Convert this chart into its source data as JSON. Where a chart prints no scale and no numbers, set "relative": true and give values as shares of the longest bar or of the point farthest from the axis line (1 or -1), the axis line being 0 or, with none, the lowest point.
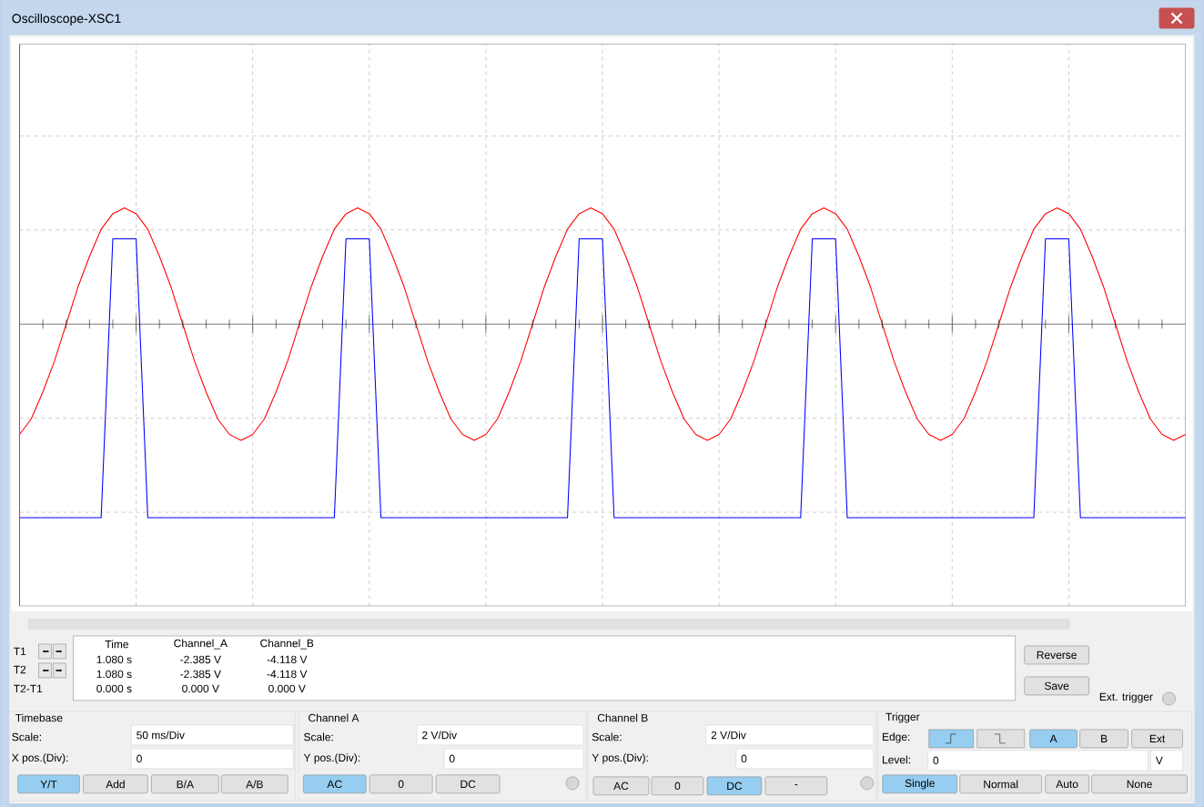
{
  "chart_data": {
    "type": "line",
    "title": "Oscilloscope-XSC1",
    "relative": true,
    "grid": true,
    "categories": [
      null,
      null,
      null,
      null,
      null,
      null,
      null,
      null,
      null,
      null,
      null,
      null,
      null,
      null,
      null,
      null,
      null,
      null,
      null,
      null,
      null,
      null,
      null,
      null,
      null,
      null,
      null,
      null,
      null,
      null,
      null,
      null,
      null,
      null,
      null,
      null,
      null,
      null,
      null,
      null,
      null,
      null,
      null,
      null,
      null,
      null,
      null,
      null,
      null,
      null,
      null,
      null,
      null,
      null,
      null,
      null,
      null,
      null,
      null,
      null,
      null,
      null,
      null,
      null,
      null,
      null,
      null,
      null,
      null,
      null,
      null,
      null,
      null,
      null,
      null,
      null,
      null,
      null,
      null,
      null,
      null,
      null,
      null,
      null,
      null,
      null,
      null,
      null,
      null,
      null,
      null,
      null,
      null,
      null,
      null,
      null,
      null,
      null,
      null,
      null,
      null
    ],
    "series": [
      {
        "color": "#ff0000",
        "values": [
          -0.57,
          -0.49,
          -0.35,
          -0.19,
          0,
          0.19,
          0.35,
          0.49,
          0.57,
          0.6,
          0.57,
          0.49,
          0.35,
          0.19,
          0,
          -0.19,
          -0.35,
          -0.49,
          -0.57,
          -0.6,
          -0.57,
          -0.49,
          -0.35,
          -0.19,
          0,
          0.19,
          0.35,
          0.49,
          0.57,
          0.6,
          0.57,
          0.49,
          0.35,
          0.19,
          0,
          -0.19,
          -0.35,
          -0.49,
          -0.57,
          -0.6,
          -0.57,
          -0.49,
          -0.35,
          -0.19,
          0,
          0.19,
          0.35,
          0.49,
          0.57,
          0.6,
          0.57,
          0.49,
          0.35,
          0.19,
          0,
          -0.19,
          -0.35,
          -0.49,
          -0.57,
          -0.6,
          -0.57,
          -0.49,
          -0.35,
          -0.19,
          0,
          0.19,
          0.35,
          0.49,
          0.57,
          0.6,
          0.57,
          0.49,
          0.35,
          0.19,
          0,
          -0.19,
          -0.35,
          -0.49,
          -0.57,
          -0.6,
          -0.57,
          -0.49,
          -0.35,
          -0.19,
          0,
          0.19,
          0.35,
          0.49,
          0.57,
          0.6,
          0.57,
          0.49,
          0.35,
          0.19,
          0,
          -0.19,
          -0.35,
          -0.49,
          -0.57,
          -0.6,
          -0.57
        ]
      },
      {
        "color": "#0000ff",
        "values": [
          -1,
          -1,
          -1,
          -1,
          -1,
          -1,
          -1,
          -1,
          0.44,
          0.44,
          0.44,
          -1,
          -1,
          -1,
          -1,
          -1,
          -1,
          -1,
          -1,
          -1,
          -1,
          -1,
          -1,
          -1,
          -1,
          -1,
          -1,
          -1,
          0.44,
          0.44,
          0.44,
          -1,
          -1,
          -1,
          -1,
          -1,
          -1,
          -1,
          -1,
          -1,
          -1,
          -1,
          -1,
          -1,
          -1,
          -1,
          -1,
          -1,
          0.44,
          0.44,
          0.44,
          -1,
          -1,
          -1,
          -1,
          -1,
          -1,
          -1,
          -1,
          -1,
          -1,
          -1,
          -1,
          -1,
          -1,
          -1,
          -1,
          -1,
          0.44,
          0.44,
          0.44,
          -1,
          -1,
          -1,
          -1,
          -1,
          -1,
          -1,
          -1,
          -1,
          -1,
          -1,
          -1,
          -1,
          -1,
          -1,
          -1,
          -1,
          0.44,
          0.44,
          0.44,
          -1,
          -1,
          -1,
          -1,
          -1,
          -1,
          -1,
          -1,
          -1,
          -1
        ]
      }
    ],
    "annotations": [
      "T1",
      "T2",
      "T2-T1",
      "Time",
      "Channel_A",
      "Channel_B",
      "1.080 s",
      "-2.385 V",
      "-4.118 V",
      "1.080 s",
      "-2.385 V",
      "-4.118 V",
      "0.000 s",
      "0.000 V",
      "0.000 V",
      "Reverse",
      "Save",
      "Ext. trigger",
      "Timebase",
      "Scale:",
      "50 ms/Div",
      "X pos.(Div):",
      "0",
      "Y/T",
      "Add",
      "B/A",
      "A/B",
      "Channel A",
      "Scale:",
      "2  V/Div",
      "Y pos.(Div):",
      "0",
      "AC",
      "0",
      "DC",
      "Channel B",
      "Scale:",
      "2  V/Div",
      "Y pos.(Div):",
      "0",
      "AC",
      "0",
      "DC",
      "-",
      "Trigger",
      "Edge:",
      "A",
      "B",
      "Ext",
      "Level:",
      "0",
      "V",
      "Single",
      "Normal",
      "Auto",
      "None"
    ]
  }
}
